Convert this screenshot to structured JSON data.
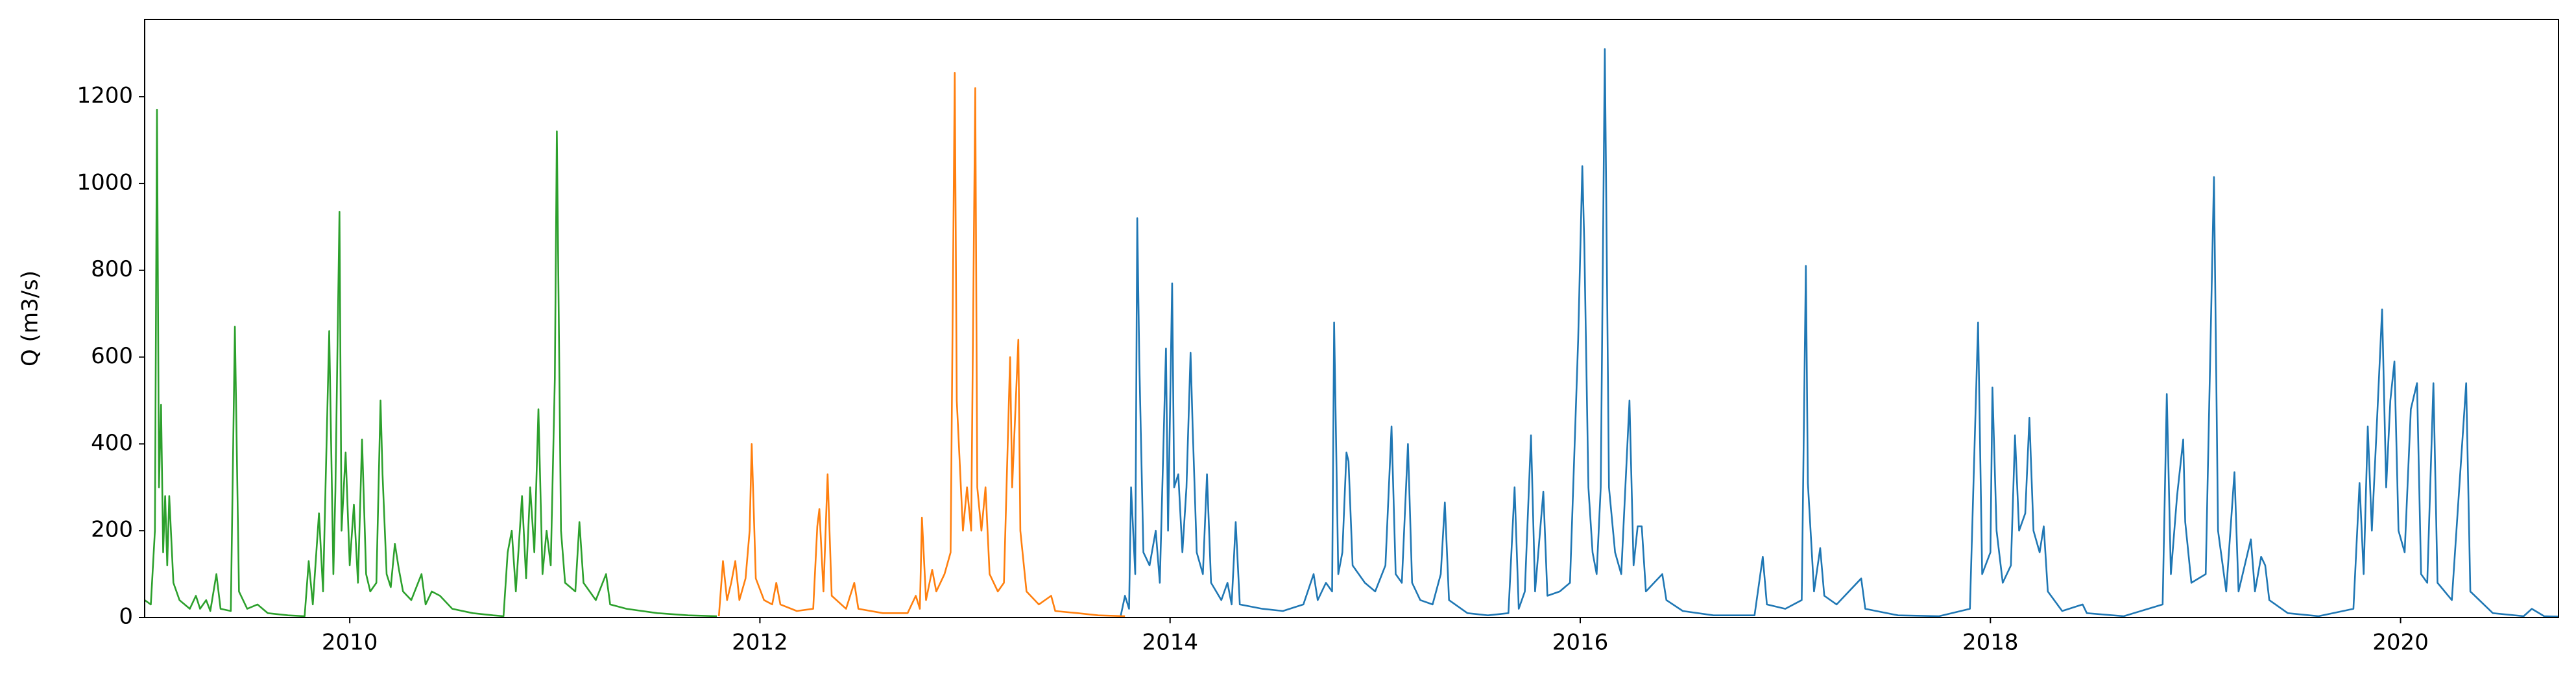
{
  "chart_data": {
    "type": "line",
    "y_label": "Q (m3/s)",
    "xlim": [
      2009.0,
      2020.77
    ],
    "xticks": [
      2010,
      2012,
      2014,
      2016,
      2018,
      2020
    ],
    "ylim": [
      0,
      1378
    ],
    "yticks": [
      0,
      200,
      400,
      600,
      800,
      1000,
      1200
    ],
    "grid": false,
    "series": [
      {
        "color": "#2ca02c",
        "x": [
          2009.0,
          2009.03,
          2009.05,
          2009.06,
          2009.07,
          2009.08,
          2009.09,
          2009.1,
          2009.11,
          2009.12,
          2009.14,
          2009.17,
          2009.22,
          2009.25,
          2009.27,
          2009.3,
          2009.32,
          2009.35,
          2009.37,
          2009.42,
          2009.44,
          2009.46,
          2009.5,
          2009.55,
          2009.6,
          2009.7,
          2009.78,
          2009.8,
          2009.82,
          2009.85,
          2009.87,
          2009.9,
          2009.92,
          2009.93,
          2009.95,
          2009.96,
          2009.98,
          2010.0,
          2010.02,
          2010.04,
          2010.06,
          2010.08,
          2010.1,
          2010.13,
          2010.15,
          2010.16,
          2010.18,
          2010.2,
          2010.22,
          2010.24,
          2010.26,
          2010.3,
          2010.35,
          2010.37,
          2010.4,
          2010.44,
          2010.5,
          2010.6,
          2010.7,
          2010.75,
          2010.77,
          2010.79,
          2010.81,
          2010.84,
          2010.86,
          2010.88,
          2010.9,
          2010.92,
          2010.94,
          2010.96,
          2010.98,
          2011.0,
          2011.01,
          2011.03,
          2011.05,
          2011.1,
          2011.12,
          2011.14,
          2011.2,
          2011.25,
          2011.27,
          2011.35,
          2011.5,
          2011.65,
          2011.79
        ],
        "values": [
          40,
          30,
          200,
          1170,
          300,
          490,
          150,
          280,
          120,
          280,
          80,
          40,
          20,
          50,
          20,
          40,
          15,
          100,
          20,
          15,
          670,
          60,
          20,
          30,
          10,
          5,
          3,
          130,
          30,
          240,
          60,
          660,
          100,
          290,
          935,
          200,
          380,
          120,
          260,
          80,
          410,
          100,
          60,
          80,
          500,
          330,
          100,
          70,
          170,
          110,
          60,
          40,
          100,
          30,
          60,
          50,
          20,
          10,
          5,
          3,
          150,
          200,
          60,
          280,
          90,
          300,
          150,
          480,
          100,
          200,
          120,
          550,
          1120,
          200,
          80,
          60,
          220,
          80,
          40,
          100,
          30,
          20,
          10,
          5,
          3
        ]
      },
      {
        "color": "#ff7f0e",
        "x": [
          2011.8,
          2011.82,
          2011.84,
          2011.86,
          2011.88,
          2011.9,
          2011.93,
          2011.95,
          2011.96,
          2011.98,
          2012.02,
          2012.06,
          2012.08,
          2012.1,
          2012.18,
          2012.26,
          2012.28,
          2012.29,
          2012.31,
          2012.33,
          2012.35,
          2012.42,
          2012.46,
          2012.48,
          2012.6,
          2012.72,
          2012.76,
          2012.78,
          2012.79,
          2012.81,
          2012.84,
          2012.86,
          2012.9,
          2012.93,
          2012.95,
          2012.96,
          2012.97,
          2012.99,
          2013.01,
          2013.03,
          2013.05,
          2013.06,
          2013.08,
          2013.1,
          2013.12,
          2013.16,
          2013.19,
          2013.22,
          2013.23,
          2013.26,
          2013.27,
          2013.3,
          2013.36,
          2013.42,
          2013.44,
          2013.55,
          2013.65,
          2013.78
        ],
        "values": [
          3,
          130,
          40,
          80,
          130,
          40,
          90,
          200,
          400,
          90,
          40,
          30,
          80,
          30,
          15,
          20,
          210,
          250,
          60,
          330,
          50,
          20,
          80,
          20,
          10,
          10,
          50,
          20,
          230,
          40,
          110,
          60,
          100,
          150,
          1255,
          500,
          400,
          200,
          300,
          200,
          1220,
          300,
          200,
          300,
          100,
          60,
          80,
          600,
          300,
          640,
          200,
          60,
          30,
          50,
          15,
          10,
          5,
          3
        ]
      },
      {
        "color": "#1f77b4",
        "x": [
          2013.76,
          2013.78,
          2013.8,
          2013.81,
          2013.83,
          2013.84,
          2013.85,
          2013.87,
          2013.9,
          2013.93,
          2013.95,
          2013.98,
          2013.99,
          2014.01,
          2014.02,
          2014.04,
          2014.06,
          2014.08,
          2014.1,
          2014.11,
          2014.13,
          2014.16,
          2014.18,
          2014.2,
          2014.25,
          2014.28,
          2014.3,
          2014.32,
          2014.34,
          2014.45,
          2014.55,
          2014.65,
          2014.7,
          2014.72,
          2014.76,
          2014.79,
          2014.8,
          2014.82,
          2014.84,
          2014.86,
          2014.87,
          2014.89,
          2014.95,
          2015.0,
          2015.05,
          2015.08,
          2015.1,
          2015.13,
          2015.16,
          2015.18,
          2015.22,
          2015.28,
          2015.32,
          2015.34,
          2015.36,
          2015.45,
          2015.55,
          2015.65,
          2015.68,
          2015.7,
          2015.73,
          2015.76,
          2015.78,
          2015.82,
          2015.84,
          2015.9,
          2015.95,
          2015.99,
          2016.01,
          2016.02,
          2016.04,
          2016.06,
          2016.08,
          2016.1,
          2016.12,
          2016.14,
          2016.17,
          2016.2,
          2016.24,
          2016.26,
          2016.28,
          2016.3,
          2016.32,
          2016.36,
          2016.4,
          2016.42,
          2016.5,
          2016.65,
          2016.85,
          2016.89,
          2016.91,
          2017.0,
          2017.08,
          2017.1,
          2017.11,
          2017.14,
          2017.17,
          2017.19,
          2017.25,
          2017.37,
          2017.39,
          2017.55,
          2017.75,
          2017.9,
          2017.94,
          2017.96,
          2018.0,
          2018.01,
          2018.03,
          2018.06,
          2018.1,
          2018.12,
          2018.14,
          2018.17,
          2018.19,
          2018.21,
          2018.24,
          2018.26,
          2018.28,
          2018.35,
          2018.45,
          2018.47,
          2018.65,
          2018.84,
          2018.86,
          2018.88,
          2018.91,
          2018.94,
          2018.95,
          2018.98,
          2019.05,
          2019.09,
          2019.11,
          2019.15,
          2019.19,
          2019.21,
          2019.27,
          2019.29,
          2019.32,
          2019.34,
          2019.36,
          2019.45,
          2019.6,
          2019.77,
          2019.8,
          2019.82,
          2019.84,
          2019.86,
          2019.88,
          2019.91,
          2019.93,
          2019.95,
          2019.97,
          2019.99,
          2020.02,
          2020.05,
          2020.08,
          2020.1,
          2020.13,
          2020.16,
          2020.18,
          2020.25,
          2020.32,
          2020.34,
          2020.45,
          2020.6,
          2020.64,
          2020.7,
          2020.77
        ],
        "values": [
          5,
          50,
          20,
          300,
          100,
          920,
          590,
          150,
          120,
          200,
          80,
          620,
          200,
          770,
          300,
          330,
          150,
          300,
          610,
          440,
          150,
          100,
          330,
          80,
          40,
          80,
          30,
          220,
          30,
          20,
          15,
          30,
          100,
          40,
          80,
          60,
          680,
          100,
          150,
          380,
          360,
          120,
          80,
          60,
          120,
          440,
          100,
          80,
          400,
          80,
          40,
          30,
          100,
          265,
          40,
          10,
          5,
          10,
          300,
          20,
          60,
          420,
          60,
          290,
          50,
          60,
          80,
          640,
          1040,
          860,
          300,
          150,
          100,
          300,
          1310,
          300,
          150,
          100,
          500,
          120,
          210,
          210,
          60,
          80,
          100,
          40,
          15,
          5,
          5,
          140,
          30,
          20,
          40,
          810,
          310,
          60,
          160,
          50,
          30,
          90,
          20,
          5,
          3,
          20,
          680,
          100,
          150,
          530,
          200,
          80,
          120,
          420,
          200,
          240,
          460,
          200,
          150,
          210,
          60,
          15,
          30,
          10,
          3,
          30,
          515,
          100,
          280,
          410,
          220,
          80,
          100,
          1015,
          200,
          60,
          335,
          60,
          180,
          60,
          140,
          120,
          40,
          10,
          3,
          20,
          310,
          100,
          440,
          200,
          400,
          710,
          300,
          500,
          590,
          200,
          150,
          480,
          540,
          100,
          80,
          540,
          80,
          40,
          540,
          60,
          10,
          3,
          20,
          3,
          2
        ]
      }
    ]
  }
}
